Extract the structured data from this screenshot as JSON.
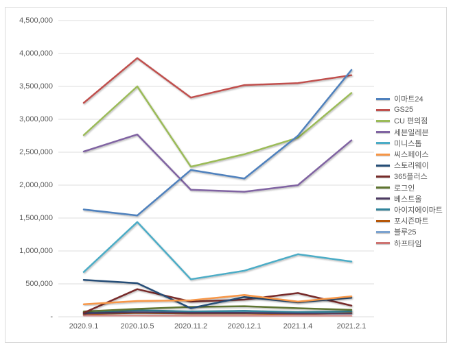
{
  "chart_data": {
    "type": "line",
    "x": [
      "2020.9.1",
      "2020.10.5",
      "2020.11.2",
      "2020.12.1",
      "2021.1.4",
      "2021.2.1"
    ],
    "y_tick_labels": [
      "4,500,000",
      "4,000,000",
      "3,500,000",
      "3,000,000",
      "2,500,000",
      "2,000,000",
      "1,500,000",
      "1,000,000",
      "500,000",
      "-"
    ],
    "ylim": [
      0,
      4500000
    ],
    "y_step": 500000,
    "grid": true,
    "legend_position": "right",
    "title": "",
    "xlabel": "",
    "ylabel": "",
    "series": [
      {
        "name": "이마트24",
        "color": "#4F81BD",
        "values": [
          1630000,
          1540000,
          2230000,
          2100000,
          2750000,
          3750000
        ]
      },
      {
        "name": "GS25",
        "color": "#C0504D",
        "values": [
          3250000,
          3930000,
          3330000,
          3520000,
          3550000,
          3670000
        ]
      },
      {
        "name": "CU 편의점",
        "color": "#9BBB59",
        "values": [
          2760000,
          3500000,
          2280000,
          2470000,
          2720000,
          3400000
        ]
      },
      {
        "name": "세븐일레븐",
        "color": "#8064A2",
        "values": [
          2510000,
          2770000,
          1930000,
          1900000,
          2000000,
          2680000
        ]
      },
      {
        "name": "미니스톱",
        "color": "#4BACC6",
        "values": [
          680000,
          1440000,
          570000,
          700000,
          950000,
          840000
        ]
      },
      {
        "name": "씨스페이스",
        "color": "#F79646",
        "values": [
          190000,
          240000,
          250000,
          330000,
          230000,
          310000
        ]
      },
      {
        "name": "스토리웨이",
        "color": "#254E77",
        "values": [
          560000,
          510000,
          130000,
          300000,
          220000,
          290000
        ]
      },
      {
        "name": "365플러스",
        "color": "#772C2A",
        "values": [
          60000,
          420000,
          230000,
          260000,
          360000,
          170000
        ]
      },
      {
        "name": "로그인",
        "color": "#5F7530",
        "values": [
          80000,
          120000,
          150000,
          160000,
          130000,
          105000
        ]
      },
      {
        "name": "베스트올",
        "color": "#4D3B62",
        "values": [
          50000,
          70000,
          60000,
          60000,
          50000,
          45000
        ]
      },
      {
        "name": "아이지에이마트",
        "color": "#31849B",
        "values": [
          70000,
          100000,
          80000,
          90000,
          70000,
          80000
        ]
      },
      {
        "name": "포시즌마트",
        "color": "#B65708",
        "values": [
          40000,
          60000,
          50000,
          50000,
          40000,
          55000
        ]
      },
      {
        "name": "블루25",
        "color": "#7BA2CF",
        "values": [
          40000,
          90000,
          70000,
          90000,
          60000,
          70000
        ]
      },
      {
        "name": "하프타임",
        "color": "#CD7371",
        "values": [
          20000,
          20000,
          15000,
          15000,
          10000,
          10000
        ]
      }
    ],
    "colors": {
      "gridline": "#dcdcdc",
      "frame_border": "#d9d9d9",
      "tick_label": "#595959",
      "background": "#ffffff"
    }
  }
}
